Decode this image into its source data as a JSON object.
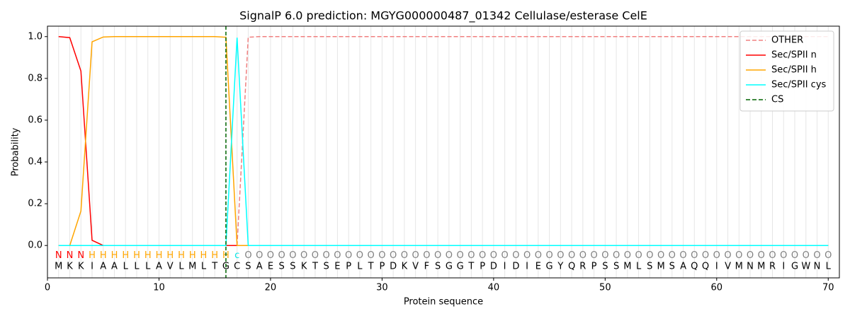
{
  "chart_data": {
    "type": "line",
    "title": "SignalP 6.0 prediction: MGYG000000487_01342 Cellulase/esterase CelE",
    "x_label": "Protein sequence",
    "y_label": "Probability",
    "x": [
      1,
      2,
      3,
      4,
      5,
      6,
      7,
      8,
      9,
      10,
      11,
      12,
      13,
      14,
      15,
      16,
      17,
      18,
      19,
      20,
      21,
      22,
      23,
      24,
      25,
      26,
      27,
      28,
      29,
      30,
      31,
      32,
      33,
      34,
      35,
      36,
      37,
      38,
      39,
      40,
      41,
      42,
      43,
      44,
      45,
      46,
      47,
      48,
      49,
      50,
      51,
      52,
      53,
      54,
      55,
      56,
      57,
      58,
      59,
      60,
      61,
      62,
      63,
      64,
      65,
      66,
      67,
      68,
      69,
      70
    ],
    "residues": [
      "M",
      "K",
      "K",
      "I",
      "A",
      "A",
      "L",
      "L",
      "L",
      "A",
      "V",
      "L",
      "M",
      "L",
      "T",
      "G",
      "C",
      "S",
      "A",
      "E",
      "S",
      "S",
      "K",
      "T",
      "S",
      "E",
      "P",
      "L",
      "T",
      "P",
      "D",
      "K",
      "V",
      "F",
      "S",
      "G",
      "G",
      "T",
      "P",
      "D",
      "I",
      "D",
      "I",
      "E",
      "G",
      "Y",
      "Q",
      "R",
      "P",
      "S",
      "S",
      "M",
      "L",
      "S",
      "M",
      "S",
      "A",
      "Q",
      "Q",
      "I",
      "V",
      "M",
      "N",
      "M",
      "R",
      "I",
      "G",
      "W",
      "N",
      "L"
    ],
    "regions": [
      "N",
      "N",
      "N",
      "H",
      "H",
      "H",
      "H",
      "H",
      "H",
      "H",
      "H",
      "H",
      "H",
      "H",
      "H",
      "H",
      "c",
      "O",
      "O",
      "O",
      "O",
      "O",
      "O",
      "O",
      "O",
      "O",
      "O",
      "O",
      "O",
      "O",
      "O",
      "O",
      "O",
      "O",
      "O",
      "O",
      "O",
      "O",
      "O",
      "O",
      "O",
      "O",
      "O",
      "O",
      "O",
      "O",
      "O",
      "O",
      "O",
      "O",
      "O",
      "O",
      "O",
      "O",
      "O",
      "O",
      "O",
      "O",
      "O",
      "O",
      "O",
      "O",
      "O",
      "O",
      "O",
      "O",
      "O",
      "O",
      "O",
      "O"
    ],
    "region_colors": {
      "N": "#ff0000",
      "H": "#ffa500",
      "c": "#00e5e5",
      "O": "#808080"
    },
    "series": [
      {
        "name": "OTHER",
        "color": "#f08080",
        "dash": true,
        "values": [
          0,
          0,
          0,
          0,
          0,
          0,
          0,
          0,
          0,
          0,
          0,
          0,
          0,
          0,
          0,
          0,
          0,
          0.997,
          1,
          1,
          1,
          1,
          1,
          1,
          1,
          1,
          1,
          1,
          1,
          1,
          1,
          1,
          1,
          1,
          1,
          1,
          1,
          1,
          1,
          1,
          1,
          1,
          1,
          1,
          1,
          1,
          1,
          1,
          1,
          1,
          1,
          1,
          1,
          1,
          1,
          1,
          1,
          1,
          1,
          1,
          1,
          1,
          1,
          1,
          1,
          1,
          1,
          1,
          1,
          1
        ]
      },
      {
        "name": "Sec/SPII n",
        "color": "#ff0000",
        "dash": false,
        "values": [
          1.0,
          0.995,
          0.835,
          0.025,
          0,
          0,
          0,
          0,
          0,
          0,
          0,
          0,
          0,
          0,
          0,
          0,
          0,
          0,
          0,
          0,
          0,
          0,
          0,
          0,
          0,
          0,
          0,
          0,
          0,
          0,
          0,
          0,
          0,
          0,
          0,
          0,
          0,
          0,
          0,
          0,
          0,
          0,
          0,
          0,
          0,
          0,
          0,
          0,
          0,
          0,
          0,
          0,
          0,
          0,
          0,
          0,
          0,
          0,
          0,
          0,
          0,
          0,
          0,
          0,
          0,
          0,
          0,
          0,
          0,
          0
        ]
      },
      {
        "name": "Sec/SPII h",
        "color": "#ffa500",
        "dash": false,
        "values": [
          0,
          0,
          0.165,
          0.975,
          0.998,
          1,
          1,
          1,
          1,
          1,
          1,
          1,
          1,
          1,
          1,
          0.997,
          0,
          0,
          0,
          0,
          0,
          0,
          0,
          0,
          0,
          0,
          0,
          0,
          0,
          0,
          0,
          0,
          0,
          0,
          0,
          0,
          0,
          0,
          0,
          0,
          0,
          0,
          0,
          0,
          0,
          0,
          0,
          0,
          0,
          0,
          0,
          0,
          0,
          0,
          0,
          0,
          0,
          0,
          0,
          0,
          0,
          0,
          0,
          0,
          0,
          0,
          0,
          0,
          0,
          0
        ]
      },
      {
        "name": "Sec/SPII cys",
        "color": "#00ffff",
        "dash": false,
        "values": [
          0,
          0,
          0,
          0,
          0,
          0,
          0,
          0,
          0,
          0,
          0,
          0,
          0,
          0,
          0,
          0,
          0.995,
          0,
          0,
          0,
          0,
          0,
          0,
          0,
          0,
          0,
          0,
          0,
          0,
          0,
          0,
          0,
          0,
          0,
          0,
          0,
          0,
          0,
          0,
          0,
          0,
          0,
          0,
          0,
          0,
          0,
          0,
          0,
          0,
          0,
          0,
          0,
          0,
          0,
          0,
          0,
          0,
          0,
          0,
          0,
          0,
          0,
          0,
          0,
          0,
          0,
          0,
          0,
          0,
          0
        ]
      }
    ],
    "vlines": [
      {
        "name": "CS",
        "color": "#006400",
        "x": 16
      }
    ],
    "xlim": [
      0,
      71
    ],
    "ylim": [
      -0.155,
      1.05
    ],
    "xticks": [
      0,
      10,
      20,
      30,
      40,
      50,
      60,
      70
    ],
    "yticks": [
      {
        "value": 0,
        "label": "0.0"
      },
      {
        "value": 0.2,
        "label": "0.2"
      },
      {
        "value": 0.4,
        "label": "0.4"
      },
      {
        "value": 0.6,
        "label": "0.6"
      },
      {
        "value": 0.8,
        "label": "0.8"
      },
      {
        "value": 1,
        "label": "1.0"
      }
    ],
    "legend": "upper right",
    "grid": true
  }
}
